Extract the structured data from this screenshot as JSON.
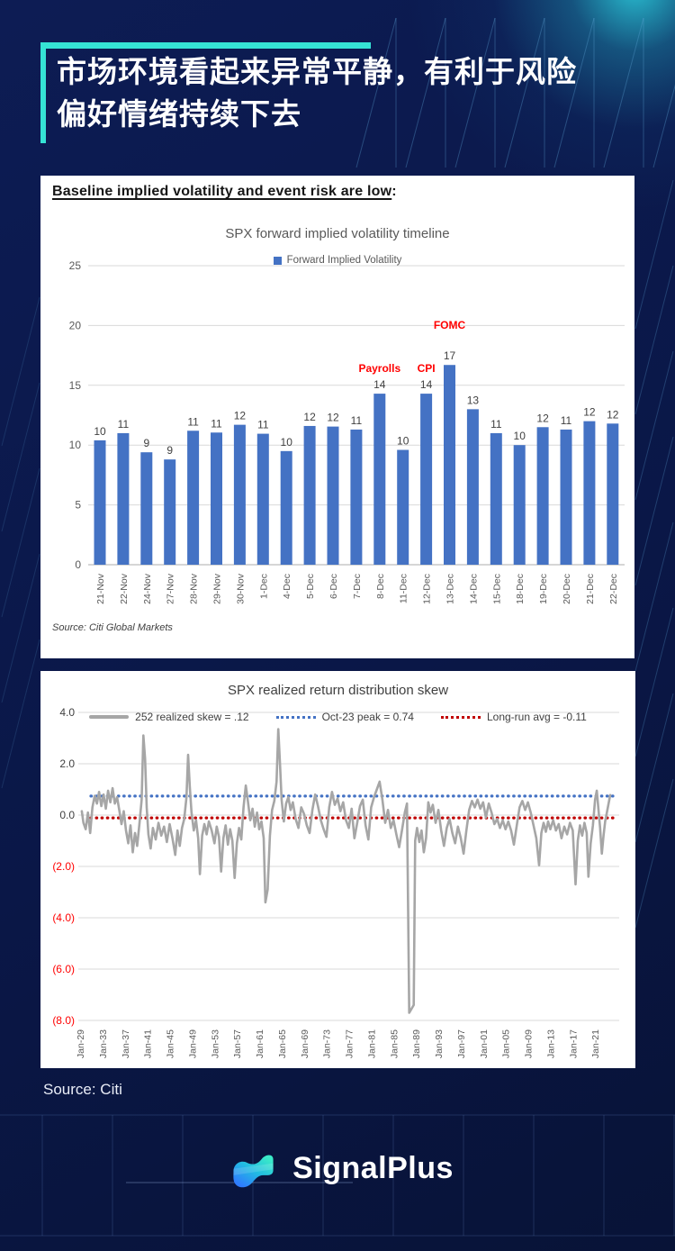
{
  "page": {
    "title_line1": "市场环境看起来异常平静，有利于风险",
    "title_line2": "偏好情绪持续下去",
    "source_bottom": "Source: Citi",
    "accent_color": "#35e3d5",
    "background_color": "#0a1747"
  },
  "brand": {
    "name": "SignalPlus",
    "logo_icon": "signalplus-wave-icon"
  },
  "card1": {
    "heading": "Baseline implied volatility and event risk are low",
    "heading_colon": ":",
    "source": "Source: Citi Global Markets"
  },
  "chart_data": [
    {
      "type": "bar",
      "title": "SPX forward implied volatility timeline",
      "legend": [
        "Forward Implied Volatility"
      ],
      "legend_position": "top",
      "bar_color": "#4472C4",
      "grid": true,
      "grid_color": "#D9D9D9",
      "axis_label_color": "#595959",
      "data_label_color": "#404040",
      "annotation_color": "#FF0000",
      "ylim": [
        0,
        25
      ],
      "yticks": [
        0,
        5,
        10,
        15,
        20,
        25
      ],
      "categories": [
        "21-Nov",
        "22-Nov",
        "24-Nov",
        "27-Nov",
        "28-Nov",
        "29-Nov",
        "30-Nov",
        "1-Dec",
        "4-Dec",
        "5-Dec",
        "6-Dec",
        "7-Dec",
        "8-Dec",
        "11-Dec",
        "12-Dec",
        "13-Dec",
        "14-Dec",
        "15-Dec",
        "18-Dec",
        "19-Dec",
        "20-Dec",
        "21-Dec",
        "22-Dec"
      ],
      "values": [
        10.4,
        11.0,
        9.4,
        8.8,
        11.2,
        11.05,
        11.7,
        10.95,
        9.5,
        11.6,
        11.55,
        11.3,
        14.3,
        9.6,
        14.3,
        16.7,
        13.0,
        11.0,
        10.0,
        11.5,
        11.3,
        12.0,
        11.8
      ],
      "data_labels": [
        "10",
        "11",
        "9",
        "9",
        "11",
        "11",
        "12",
        "11",
        "10",
        "12",
        "12",
        "11",
        "14",
        "10",
        "14",
        "17",
        "13",
        "11",
        "10",
        "12",
        "11",
        "12",
        "12"
      ],
      "annotations": [
        {
          "category": "8-Dec",
          "label": "Payrolls",
          "offset": 24
        },
        {
          "category": "12-Dec",
          "label": "CPI",
          "offset": 24
        },
        {
          "category": "13-Dec",
          "label": "FOMC",
          "offset": 40
        }
      ]
    },
    {
      "type": "line",
      "title": "SPX realized return distribution skew",
      "grid": true,
      "grid_color": "#D9D9D9",
      "axis_label_color": "#404040",
      "tick_label_color": "#595959",
      "negative_label_color": "#FF0000",
      "ylim": [
        -8,
        4
      ],
      "yticks": [
        4,
        2,
        0,
        -2,
        -4,
        -6,
        -8
      ],
      "ytick_labels": [
        "4.0",
        "2.0",
        "0.0",
        "(2.0)",
        "(4.0)",
        "(6.0)",
        "(8.0)"
      ],
      "xticks": [
        "Jan-29",
        "Jan-33",
        "Jan-37",
        "Jan-41",
        "Jan-45",
        "Jan-49",
        "Jan-53",
        "Jan-57",
        "Jan-61",
        "Jan-65",
        "Jan-69",
        "Jan-73",
        "Jan-77",
        "Jan-81",
        "Jan-85",
        "Jan-89",
        "Jan-93",
        "Jan-97",
        "Jan-01",
        "Jan-05",
        "Jan-09",
        "Jan-13",
        "Jan-17",
        "Jan-21"
      ],
      "xtick_start_year": 1929,
      "xtick_step_years": 4,
      "series": [
        {
          "name": "252 realized skew = .12",
          "color": "#A6A6A6",
          "style": "solid",
          "points": [
            [
              1929.3,
              0.15
            ],
            [
              1929.6,
              -0.3
            ],
            [
              1930,
              -0.55
            ],
            [
              1930.4,
              0.1
            ],
            [
              1930.8,
              -0.7
            ],
            [
              1931.2,
              0.3
            ],
            [
              1931.6,
              0.75
            ],
            [
              1932,
              0.45
            ],
            [
              1932.4,
              0.9
            ],
            [
              1932.8,
              0.35
            ],
            [
              1933.2,
              0.8
            ],
            [
              1933.6,
              0.25
            ],
            [
              1934,
              0.95
            ],
            [
              1934.4,
              0.5
            ],
            [
              1934.8,
              1.05
            ],
            [
              1935.2,
              0.45
            ],
            [
              1935.6,
              0.7
            ],
            [
              1936,
              0.2
            ],
            [
              1936.4,
              -0.35
            ],
            [
              1936.8,
              0.15
            ],
            [
              1937.2,
              -0.6
            ],
            [
              1937.6,
              -1.1
            ],
            [
              1938,
              -0.4
            ],
            [
              1938.4,
              -1.45
            ],
            [
              1938.8,
              -0.7
            ],
            [
              1939.2,
              -1.2
            ],
            [
              1939.6,
              -0.35
            ],
            [
              1940,
              0.6
            ],
            [
              1940.3,
              3.1
            ],
            [
              1940.6,
              2.2
            ],
            [
              1940.9,
              0.3
            ],
            [
              1941.2,
              -0.75
            ],
            [
              1941.6,
              -1.3
            ],
            [
              1942,
              -0.5
            ],
            [
              1942.5,
              -0.95
            ],
            [
              1943,
              -0.3
            ],
            [
              1943.5,
              -0.8
            ],
            [
              1944,
              -0.45
            ],
            [
              1944.5,
              -1.05
            ],
            [
              1945,
              -0.35
            ],
            [
              1945.5,
              -0.9
            ],
            [
              1946,
              -1.55
            ],
            [
              1946.4,
              -0.6
            ],
            [
              1946.8,
              -1.2
            ],
            [
              1947.2,
              -0.5
            ],
            [
              1947.6,
              -0.15
            ],
            [
              1948,
              0.7
            ],
            [
              1948.3,
              2.35
            ],
            [
              1948.6,
              1.1
            ],
            [
              1948.9,
              0.1
            ],
            [
              1949.3,
              -0.6
            ],
            [
              1949.7,
              -0.2
            ],
            [
              1950.1,
              -0.9
            ],
            [
              1950.4,
              -2.3
            ],
            [
              1950.8,
              -0.8
            ],
            [
              1951.2,
              -0.35
            ],
            [
              1951.6,
              -0.75
            ],
            [
              1952,
              -0.25
            ],
            [
              1952.5,
              -0.6
            ],
            [
              1953,
              -1.1
            ],
            [
              1953.4,
              -0.45
            ],
            [
              1953.8,
              -0.85
            ],
            [
              1954.2,
              -2.2
            ],
            [
              1954.6,
              -0.9
            ],
            [
              1955,
              -0.4
            ],
            [
              1955.4,
              -1.15
            ],
            [
              1955.8,
              -0.55
            ],
            [
              1956.2,
              -1
            ],
            [
              1956.6,
              -2.45
            ],
            [
              1957,
              -1.1
            ],
            [
              1957.4,
              -0.5
            ],
            [
              1957.8,
              -0.95
            ],
            [
              1958.2,
              0.3
            ],
            [
              1958.6,
              1.15
            ],
            [
              1959,
              0.5
            ],
            [
              1959.4,
              -0.2
            ],
            [
              1959.8,
              0.25
            ],
            [
              1960.2,
              -0.45
            ],
            [
              1960.6,
              0.1
            ],
            [
              1961,
              -0.55
            ],
            [
              1961.4,
              -0.25
            ],
            [
              1961.8,
              -0.9
            ],
            [
              1962.1,
              -3.4
            ],
            [
              1962.5,
              -2.9
            ],
            [
              1962.9,
              -0.8
            ],
            [
              1963.3,
              0.2
            ],
            [
              1963.7,
              0.55
            ],
            [
              1964.1,
              1.3
            ],
            [
              1964.4,
              3.35
            ],
            [
              1964.7,
              2
            ],
            [
              1965,
              0.6
            ],
            [
              1965.4,
              -0.25
            ],
            [
              1965.8,
              0.45
            ],
            [
              1966.2,
              0.7
            ],
            [
              1966.6,
              0.2
            ],
            [
              1967,
              0.5
            ],
            [
              1967.5,
              -0.15
            ],
            [
              1968,
              -0.5
            ],
            [
              1968.5,
              0.3
            ],
            [
              1969,
              0.05
            ],
            [
              1969.5,
              -0.4
            ],
            [
              1970,
              -0.7
            ],
            [
              1970.5,
              0.2
            ],
            [
              1971,
              0.8
            ],
            [
              1971.5,
              0.35
            ],
            [
              1972,
              -0.2
            ],
            [
              1972.5,
              -0.55
            ],
            [
              1973,
              -0.85
            ],
            [
              1973.5,
              0.3
            ],
            [
              1974,
              0.9
            ],
            [
              1974.5,
              0.4
            ],
            [
              1975,
              0.65
            ],
            [
              1975.5,
              0.15
            ],
            [
              1976,
              0.5
            ],
            [
              1976.5,
              -0.2
            ],
            [
              1977,
              -0.5
            ],
            [
              1977.5,
              0.25
            ],
            [
              1978,
              -0.9
            ],
            [
              1978.5,
              -0.3
            ],
            [
              1979,
              0.35
            ],
            [
              1979.5,
              0.6
            ],
            [
              1980,
              -0.4
            ],
            [
              1980.5,
              -0.95
            ],
            [
              1981,
              0.3
            ],
            [
              1981.5,
              0.7
            ],
            [
              1982,
              1
            ],
            [
              1982.5,
              1.3
            ],
            [
              1983,
              0.6
            ],
            [
              1983.5,
              -0.3
            ],
            [
              1984,
              0.2
            ],
            [
              1984.5,
              -0.5
            ],
            [
              1985,
              -0.2
            ],
            [
              1985.5,
              -0.75
            ],
            [
              1986,
              -1.25
            ],
            [
              1986.5,
              -0.6
            ],
            [
              1987,
              0.1
            ],
            [
              1987.4,
              0.45
            ],
            [
              1987.8,
              -7.7
            ],
            [
              1988.6,
              -7.4
            ],
            [
              1988.85,
              -1
            ],
            [
              1989.2,
              -0.5
            ],
            [
              1989.6,
              -1.05
            ],
            [
              1990,
              -0.6
            ],
            [
              1990.4,
              -1.45
            ],
            [
              1990.8,
              -0.9
            ],
            [
              1991.2,
              0.5
            ],
            [
              1991.6,
              0.1
            ],
            [
              1992,
              0.4
            ],
            [
              1992.5,
              -0.3
            ],
            [
              1993,
              0.2
            ],
            [
              1993.5,
              -0.6
            ],
            [
              1994,
              -1.2
            ],
            [
              1994.5,
              -0.5
            ],
            [
              1995,
              -0.15
            ],
            [
              1995.5,
              -0.7
            ],
            [
              1996,
              -1.1
            ],
            [
              1996.5,
              -0.45
            ],
            [
              1997,
              -0.9
            ],
            [
              1997.5,
              -1.5
            ],
            [
              1998,
              -0.6
            ],
            [
              1998.5,
              0.2
            ],
            [
              1999,
              0.55
            ],
            [
              1999.5,
              0.3
            ],
            [
              2000,
              0.6
            ],
            [
              2000.5,
              0.25
            ],
            [
              2001,
              0.5
            ],
            [
              2001.5,
              -0.1
            ],
            [
              2002,
              0.45
            ],
            [
              2002.5,
              0.1
            ],
            [
              2003,
              -0.35
            ],
            [
              2003.5,
              -0.15
            ],
            [
              2004,
              -0.5
            ],
            [
              2004.5,
              -0.2
            ],
            [
              2005,
              -0.55
            ],
            [
              2005.5,
              -0.25
            ],
            [
              2006,
              -0.6
            ],
            [
              2006.5,
              -1.15
            ],
            [
              2007,
              -0.4
            ],
            [
              2007.5,
              0.3
            ],
            [
              2008,
              0.55
            ],
            [
              2008.5,
              0.2
            ],
            [
              2009,
              0.5
            ],
            [
              2009.5,
              0.1
            ],
            [
              2010,
              -0.4
            ],
            [
              2010.5,
              -0.9
            ],
            [
              2011,
              -1.95
            ],
            [
              2011.4,
              -0.7
            ],
            [
              2011.8,
              -0.3
            ],
            [
              2012.2,
              -0.65
            ],
            [
              2012.6,
              -0.25
            ],
            [
              2013,
              -0.55
            ],
            [
              2013.5,
              -0.2
            ],
            [
              2014,
              -0.6
            ],
            [
              2014.5,
              -0.35
            ],
            [
              2015,
              -0.9
            ],
            [
              2015.5,
              -0.45
            ],
            [
              2016,
              -0.75
            ],
            [
              2016.5,
              -0.3
            ],
            [
              2017,
              -0.6
            ],
            [
              2017.5,
              -2.7
            ],
            [
              2017.9,
              -1
            ],
            [
              2018.3,
              -0.4
            ],
            [
              2018.7,
              -0.8
            ],
            [
              2019.1,
              -0.3
            ],
            [
              2019.5,
              -0.7
            ],
            [
              2019.8,
              -2.4
            ],
            [
              2020.2,
              -1.1
            ],
            [
              2020.6,
              -0.4
            ],
            [
              2021,
              0.6
            ],
            [
              2021.3,
              0.95
            ],
            [
              2021.6,
              0.2
            ],
            [
              2021.9,
              -0.5
            ],
            [
              2022.2,
              -1.5
            ],
            [
              2022.5,
              -0.8
            ],
            [
              2022.8,
              -0.25
            ],
            [
              2023.1,
              0.1
            ],
            [
              2023.4,
              0.45
            ],
            [
              2023.7,
              0.78
            ]
          ]
        },
        {
          "name": "Oct-23 peak = 0.74",
          "color": "#4472C4",
          "style": "dotted",
          "value": 0.74
        },
        {
          "name": "Long-run avg = -0.11",
          "color": "#C00000",
          "style": "dotted",
          "value": -0.11
        }
      ]
    }
  ]
}
